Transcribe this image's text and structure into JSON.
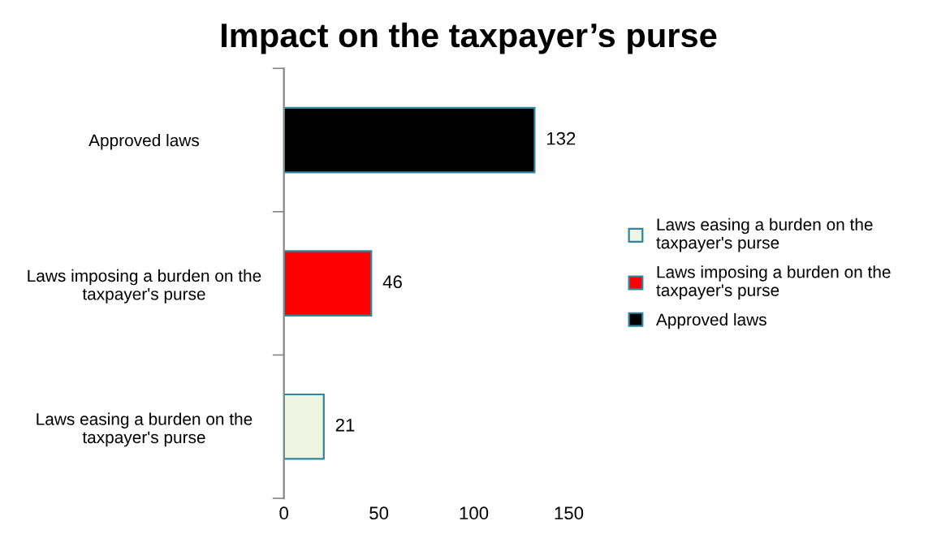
{
  "chart_data": {
    "type": "bar",
    "orientation": "horizontal",
    "title": "Impact on the taxpayer’s purse",
    "categories": [
      "Approved laws",
      "Laws imposing a burden on the\ntaxpayer's purse",
      "Laws easing a burden on the\ntaxpayer's purse"
    ],
    "series": [
      {
        "name": "Laws easing a burden on the\ntaxpayer's purse",
        "color": "#eef3e2",
        "values": [
          null,
          null,
          21
        ]
      },
      {
        "name": "Laws imposing a burden on the\ntaxpayer's purse",
        "color": "#ff0000",
        "values": [
          null,
          46,
          null
        ]
      },
      {
        "name": "Approved laws",
        "color": "#000000",
        "values": [
          132,
          null,
          null
        ]
      }
    ],
    "xlim": [
      0,
      150
    ],
    "xticks": [
      0,
      50,
      100,
      150
    ],
    "data_labels": true,
    "legend": "right"
  }
}
